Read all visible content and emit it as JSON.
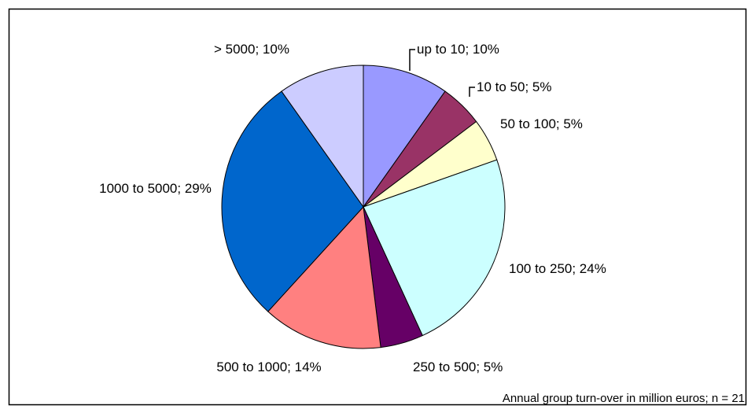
{
  "chart_data": {
    "type": "pie",
    "values": [
      10,
      5,
      5,
      24,
      5,
      14,
      29,
      10
    ],
    "value_labels": [
      "up to 10; 10%",
      "10 to 50; 5%",
      "50 to 100; 5%",
      "100 to 250; 24%",
      "250 to 500; 5%",
      "500 to 1000; 14%",
      "1000 to 5000; 29%",
      "> 5000; 10%"
    ],
    "colors": [
      "#9999ff",
      "#993366",
      "#ffffcc",
      "#ccffff",
      "#660066",
      "#ff8080",
      "#0066cc",
      "#ccccff"
    ],
    "annotation": "Annual group turn-over in million euros; n = 21"
  }
}
